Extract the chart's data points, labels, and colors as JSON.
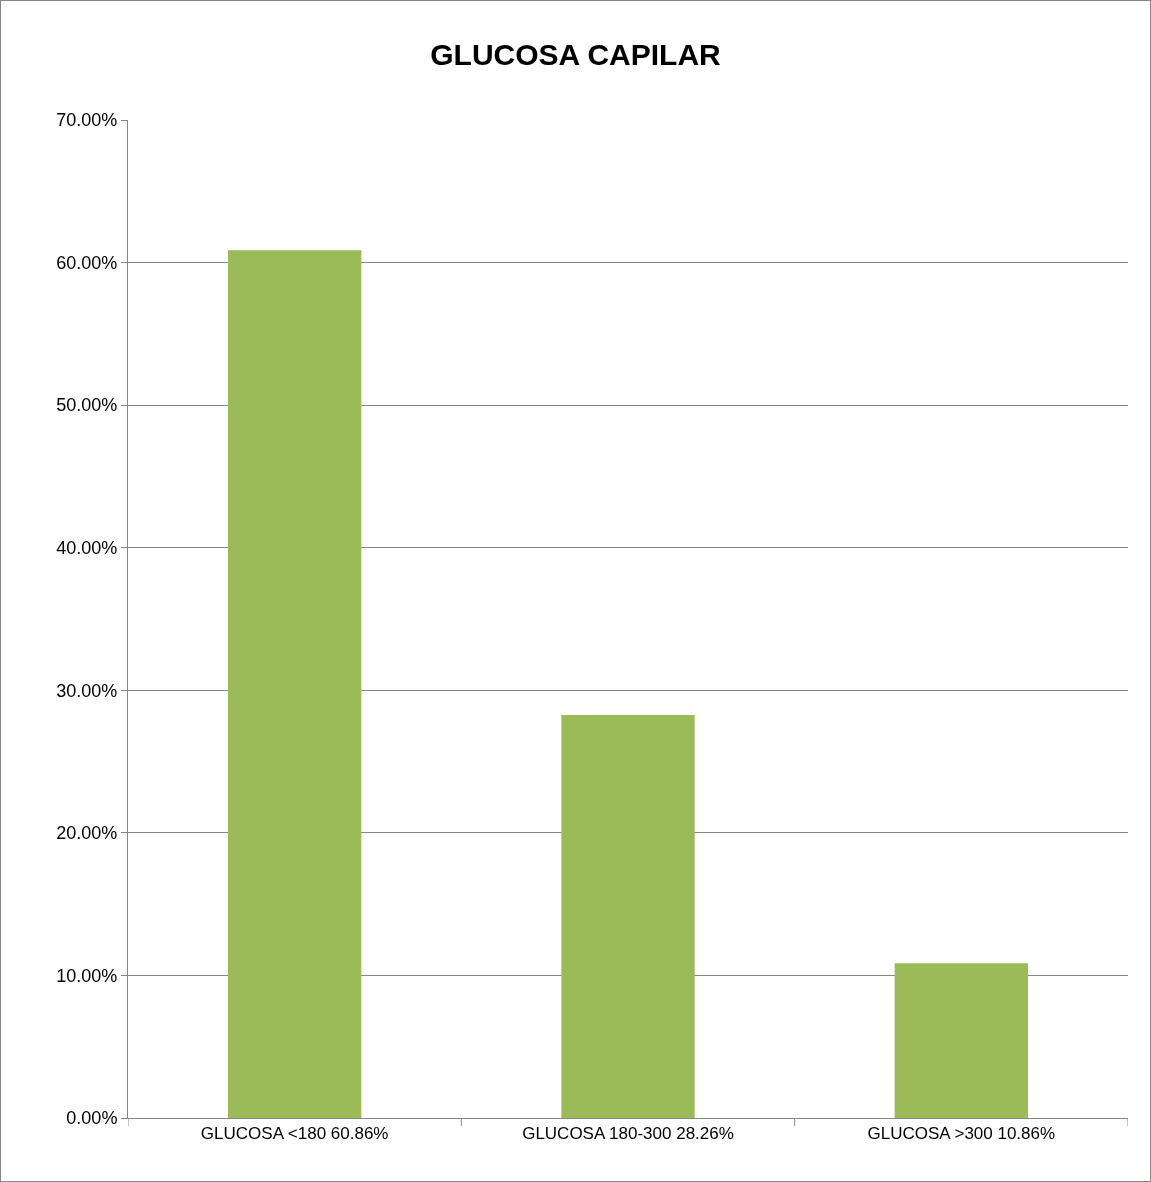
{
  "chart_data": {
    "type": "bar",
    "title": "GLUCOSA CAPILAR",
    "categories": [
      "GLUCOSA <180 60.86%",
      "GLUCOSA 180-300 28.26%",
      "GLUCOSA >300 10.86%"
    ],
    "values": [
      60.86,
      28.26,
      10.86
    ],
    "color": "#9bbb59",
    "ylim": [
      0,
      70
    ],
    "yticks": [
      {
        "value": 0,
        "label": "0.00%"
      },
      {
        "value": 10,
        "label": "10.00%"
      },
      {
        "value": 20,
        "label": "20.00%"
      },
      {
        "value": 30,
        "label": "30.00%"
      },
      {
        "value": 40,
        "label": "40.00%"
      },
      {
        "value": 50,
        "label": "50.00%"
      },
      {
        "value": 60,
        "label": "60.00%"
      },
      {
        "value": 70,
        "label": "70.00%"
      }
    ],
    "grid": "y"
  }
}
